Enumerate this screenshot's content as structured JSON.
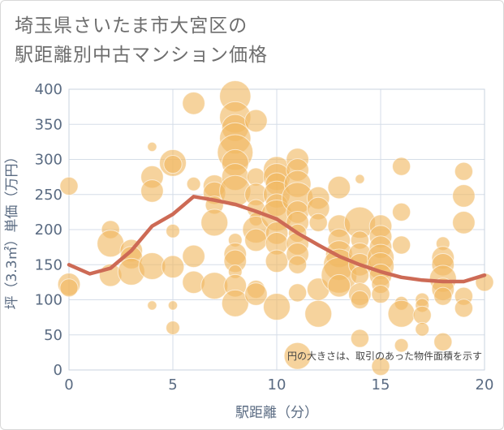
{
  "title_line1": "埼玉県さいたま市大宮区の",
  "title_line2": "駅距離別中古マンション価格",
  "chart_data": {
    "type": "scatter",
    "title": "埼玉県さいたま市大宮区の駅距離別中古マンション価格",
    "xlabel": "駅距離（分）",
    "ylabel": "坪（3.3㎡）単価（万円）",
    "xlim": [
      0,
      20
    ],
    "ylim": [
      0,
      400
    ],
    "xticks": [
      0,
      5,
      10,
      15,
      20
    ],
    "yticks": [
      0,
      50,
      100,
      150,
      200,
      250,
      300,
      350,
      400
    ],
    "grid": true,
    "note": "円の大きさは、取引のあった物件面積を示す",
    "colors": {
      "bubble": "#f0b861",
      "trend": "#cd6a55",
      "grid": "#d5dde8",
      "plot_border": "#c9d3df"
    },
    "bubbles": [
      {
        "x": 0,
        "y": 262,
        "s": 3
      },
      {
        "x": 0,
        "y": 122,
        "s": 4
      },
      {
        "x": 0,
        "y": 117,
        "s": 3
      },
      {
        "x": 2,
        "y": 200,
        "s": 3
      },
      {
        "x": 2,
        "y": 180,
        "s": 5
      },
      {
        "x": 2,
        "y": 135,
        "s": 4
      },
      {
        "x": 3,
        "y": 170,
        "s": 4
      },
      {
        "x": 3,
        "y": 160,
        "s": 4
      },
      {
        "x": 3,
        "y": 140,
        "s": 5
      },
      {
        "x": 4,
        "y": 318,
        "s": 1
      },
      {
        "x": 4,
        "y": 275,
        "s": 4
      },
      {
        "x": 4,
        "y": 255,
        "s": 4
      },
      {
        "x": 4,
        "y": 148,
        "s": 5
      },
      {
        "x": 4,
        "y": 92,
        "s": 1
      },
      {
        "x": 5,
        "y": 295,
        "s": 5
      },
      {
        "x": 5,
        "y": 293,
        "s": 3
      },
      {
        "x": 5,
        "y": 198,
        "s": 2
      },
      {
        "x": 5,
        "y": 147,
        "s": 4
      },
      {
        "x": 5,
        "y": 92,
        "s": 1
      },
      {
        "x": 5,
        "y": 60,
        "s": 2
      },
      {
        "x": 6,
        "y": 380,
        "s": 4
      },
      {
        "x": 6,
        "y": 265,
        "s": 2
      },
      {
        "x": 6,
        "y": 162,
        "s": 4
      },
      {
        "x": 6,
        "y": 125,
        "s": 4
      },
      {
        "x": 7,
        "y": 262,
        "s": 4
      },
      {
        "x": 7,
        "y": 252,
        "s": 4
      },
      {
        "x": 7,
        "y": 235,
        "s": 3
      },
      {
        "x": 7,
        "y": 210,
        "s": 5
      },
      {
        "x": 7,
        "y": 120,
        "s": 5
      },
      {
        "x": 8,
        "y": 390,
        "s": 6
      },
      {
        "x": 8,
        "y": 360,
        "s": 6
      },
      {
        "x": 8,
        "y": 345,
        "s": 5
      },
      {
        "x": 8,
        "y": 330,
        "s": 6
      },
      {
        "x": 8,
        "y": 310,
        "s": 7
      },
      {
        "x": 8,
        "y": 295,
        "s": 5
      },
      {
        "x": 8,
        "y": 275,
        "s": 5
      },
      {
        "x": 8,
        "y": 255,
        "s": 6
      },
      {
        "x": 8,
        "y": 185,
        "s": 2
      },
      {
        "x": 8,
        "y": 165,
        "s": 4
      },
      {
        "x": 8,
        "y": 155,
        "s": 4
      },
      {
        "x": 8,
        "y": 140,
        "s": 2
      },
      {
        "x": 8,
        "y": 120,
        "s": 4
      },
      {
        "x": 8,
        "y": 95,
        "s": 5
      },
      {
        "x": 9,
        "y": 355,
        "s": 4
      },
      {
        "x": 9,
        "y": 275,
        "s": 3
      },
      {
        "x": 9,
        "y": 250,
        "s": 4
      },
      {
        "x": 9,
        "y": 230,
        "s": 3
      },
      {
        "x": 9,
        "y": 215,
        "s": 2
      },
      {
        "x": 9,
        "y": 200,
        "s": 5
      },
      {
        "x": 9,
        "y": 185,
        "s": 4
      },
      {
        "x": 9,
        "y": 115,
        "s": 3
      },
      {
        "x": 9,
        "y": 108,
        "s": 4
      },
      {
        "x": 10,
        "y": 285,
        "s": 5
      },
      {
        "x": 10,
        "y": 275,
        "s": 5
      },
      {
        "x": 10,
        "y": 265,
        "s": 4
      },
      {
        "x": 10,
        "y": 250,
        "s": 5
      },
      {
        "x": 10,
        "y": 235,
        "s": 4
      },
      {
        "x": 10,
        "y": 220,
        "s": 6
      },
      {
        "x": 10,
        "y": 195,
        "s": 4
      },
      {
        "x": 10,
        "y": 180,
        "s": 4
      },
      {
        "x": 10,
        "y": 155,
        "s": 4
      },
      {
        "x": 10,
        "y": 90,
        "s": 5
      },
      {
        "x": 11,
        "y": 300,
        "s": 4
      },
      {
        "x": 11,
        "y": 285,
        "s": 4
      },
      {
        "x": 11,
        "y": 265,
        "s": 5
      },
      {
        "x": 11,
        "y": 245,
        "s": 6
      },
      {
        "x": 11,
        "y": 225,
        "s": 4
      },
      {
        "x": 11,
        "y": 210,
        "s": 4
      },
      {
        "x": 11,
        "y": 195,
        "s": 3
      },
      {
        "x": 11,
        "y": 180,
        "s": 4
      },
      {
        "x": 11,
        "y": 165,
        "s": 4
      },
      {
        "x": 11,
        "y": 150,
        "s": 3
      },
      {
        "x": 11,
        "y": 110,
        "s": 3
      },
      {
        "x": 11,
        "y": 20,
        "s": 5
      },
      {
        "x": 12,
        "y": 245,
        "s": 4
      },
      {
        "x": 12,
        "y": 230,
        "s": 4
      },
      {
        "x": 12,
        "y": 210,
        "s": 3
      },
      {
        "x": 12,
        "y": 115,
        "s": 4
      },
      {
        "x": 12,
        "y": 80,
        "s": 5
      },
      {
        "x": 13,
        "y": 260,
        "s": 4
      },
      {
        "x": 13,
        "y": 205,
        "s": 4
      },
      {
        "x": 13,
        "y": 185,
        "s": 4
      },
      {
        "x": 13,
        "y": 165,
        "s": 5
      },
      {
        "x": 13,
        "y": 150,
        "s": 6
      },
      {
        "x": 13,
        "y": 135,
        "s": 7
      },
      {
        "x": 13,
        "y": 120,
        "s": 4
      },
      {
        "x": 14,
        "y": 272,
        "s": 1
      },
      {
        "x": 14,
        "y": 210,
        "s": 6
      },
      {
        "x": 14,
        "y": 185,
        "s": 3
      },
      {
        "x": 14,
        "y": 165,
        "s": 4
      },
      {
        "x": 14,
        "y": 150,
        "s": 4
      },
      {
        "x": 14,
        "y": 135,
        "s": 3
      },
      {
        "x": 14,
        "y": 108,
        "s": 4
      },
      {
        "x": 14,
        "y": 100,
        "s": 3
      },
      {
        "x": 14,
        "y": 45,
        "s": 3
      },
      {
        "x": 15,
        "y": 205,
        "s": 4
      },
      {
        "x": 15,
        "y": 190,
        "s": 4
      },
      {
        "x": 15,
        "y": 175,
        "s": 4
      },
      {
        "x": 15,
        "y": 160,
        "s": 5
      },
      {
        "x": 15,
        "y": 148,
        "s": 5
      },
      {
        "x": 15,
        "y": 135,
        "s": 4
      },
      {
        "x": 15,
        "y": 122,
        "s": 3
      },
      {
        "x": 15,
        "y": 108,
        "s": 3
      },
      {
        "x": 15,
        "y": 5,
        "s": 3
      },
      {
        "x": 16,
        "y": 290,
        "s": 3
      },
      {
        "x": 16,
        "y": 225,
        "s": 3
      },
      {
        "x": 16,
        "y": 178,
        "s": 3
      },
      {
        "x": 16,
        "y": 95,
        "s": 2
      },
      {
        "x": 16,
        "y": 80,
        "s": 5
      },
      {
        "x": 16,
        "y": 35,
        "s": 2
      },
      {
        "x": 17,
        "y": 100,
        "s": 2
      },
      {
        "x": 17,
        "y": 92,
        "s": 2
      },
      {
        "x": 17,
        "y": 78,
        "s": 3
      },
      {
        "x": 17,
        "y": 58,
        "s": 2
      },
      {
        "x": 18,
        "y": 180,
        "s": 2
      },
      {
        "x": 18,
        "y": 160,
        "s": 4
      },
      {
        "x": 18,
        "y": 150,
        "s": 4
      },
      {
        "x": 18,
        "y": 130,
        "s": 5
      },
      {
        "x": 18,
        "y": 115,
        "s": 4
      },
      {
        "x": 18,
        "y": 105,
        "s": 3
      },
      {
        "x": 18,
        "y": 40,
        "s": 3
      },
      {
        "x": 19,
        "y": 283,
        "s": 3
      },
      {
        "x": 19,
        "y": 248,
        "s": 4
      },
      {
        "x": 19,
        "y": 210,
        "s": 4
      },
      {
        "x": 19,
        "y": 105,
        "s": 3
      },
      {
        "x": 19,
        "y": 88,
        "s": 3
      },
      {
        "x": 20,
        "y": 125,
        "s": 3
      }
    ],
    "trend": {
      "x": [
        0,
        1,
        2,
        3,
        4,
        5,
        6,
        7,
        8,
        9,
        10,
        11,
        12,
        13,
        14,
        15,
        16,
        17,
        18,
        19,
        20
      ],
      "y": [
        150,
        137,
        145,
        170,
        205,
        222,
        247,
        242,
        236,
        226,
        215,
        195,
        178,
        162,
        150,
        140,
        132,
        128,
        126,
        126,
        135
      ]
    }
  }
}
